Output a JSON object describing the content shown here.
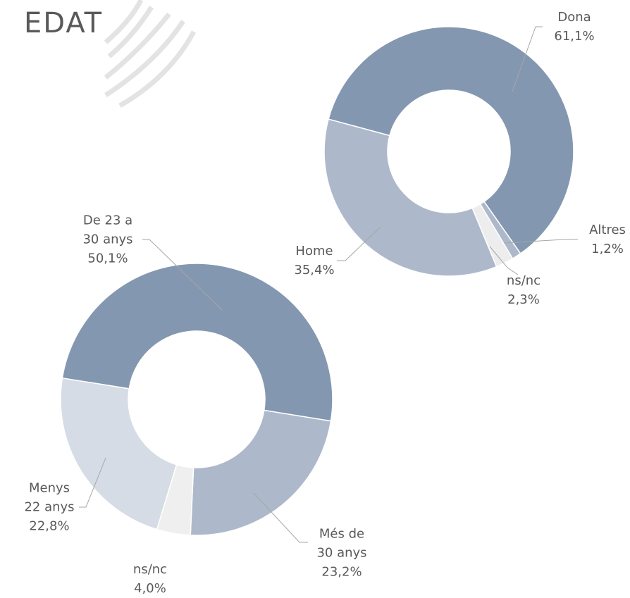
{
  "chart_data": [
    {
      "type": "pie",
      "categories": [
        "Dona",
        "Altres",
        "ns/nc",
        "Home"
      ],
      "values": [
        61.1,
        1.2,
        2.3,
        35.4
      ],
      "value_labels": [
        "61,1%",
        "1,2%",
        "2,3%",
        "35,4%"
      ],
      "colors": [
        "#8497b0",
        "#adb9ca",
        "#ededed",
        "#adb9ca"
      ]
    },
    {
      "type": "pie",
      "title": "EDAT",
      "categories": [
        "De 23 a\n30 anys",
        "Més de\n30 anys",
        "ns/nc",
        "Menys\n22 anys"
      ],
      "values": [
        50.1,
        23.2,
        4.0,
        22.8
      ],
      "value_labels": [
        "50,1%",
        "23,2%",
        "4,0%",
        "22,8%"
      ],
      "colors": [
        "#8497b0",
        "#adb9ca",
        "#efefef",
        "#d6dce5"
      ]
    }
  ]
}
